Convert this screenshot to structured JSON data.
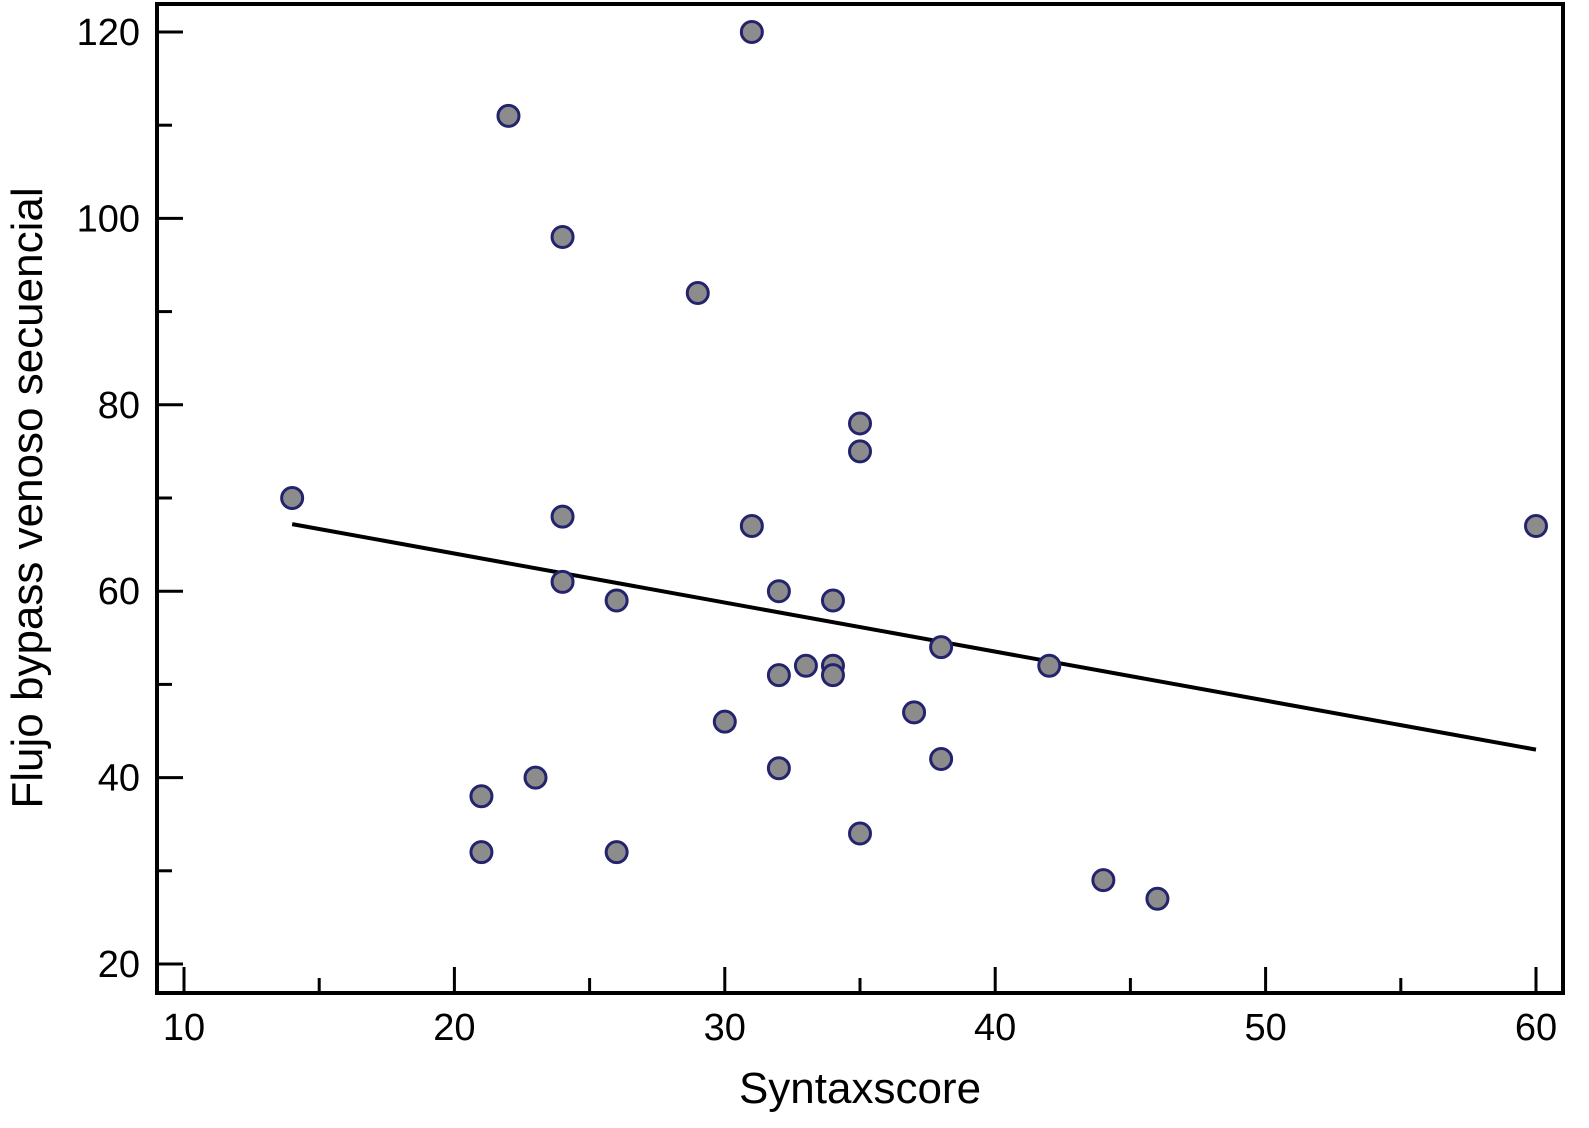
{
  "chart_data": {
    "type": "scatter",
    "title": "",
    "xlabel": "Syntaxscore",
    "ylabel": "Flujo bypass venoso secuencial",
    "xlim": [
      9,
      61
    ],
    "ylim": [
      17,
      123
    ],
    "x_ticks": [
      10,
      20,
      30,
      40,
      50,
      60
    ],
    "y_ticks": [
      20,
      40,
      60,
      80,
      100,
      120
    ],
    "x_minor_ticks": [
      15,
      25,
      35,
      45,
      55
    ],
    "y_minor_ticks": [
      30,
      50,
      70,
      90,
      110
    ],
    "grid": false,
    "points": [
      {
        "x": 14,
        "y": 70
      },
      {
        "x": 21,
        "y": 38
      },
      {
        "x": 21,
        "y": 32
      },
      {
        "x": 22,
        "y": 111
      },
      {
        "x": 23,
        "y": 40
      },
      {
        "x": 24,
        "y": 98
      },
      {
        "x": 24,
        "y": 68
      },
      {
        "x": 24,
        "y": 61
      },
      {
        "x": 26,
        "y": 59
      },
      {
        "x": 26,
        "y": 32
      },
      {
        "x": 29,
        "y": 92
      },
      {
        "x": 30,
        "y": 46
      },
      {
        "x": 31,
        "y": 120
      },
      {
        "x": 31,
        "y": 67
      },
      {
        "x": 32,
        "y": 60
      },
      {
        "x": 32,
        "y": 51
      },
      {
        "x": 32,
        "y": 41
      },
      {
        "x": 33,
        "y": 52
      },
      {
        "x": 34,
        "y": 59
      },
      {
        "x": 34,
        "y": 52
      },
      {
        "x": 34,
        "y": 51
      },
      {
        "x": 35,
        "y": 78
      },
      {
        "x": 35,
        "y": 75
      },
      {
        "x": 35,
        "y": 34
      },
      {
        "x": 37,
        "y": 47
      },
      {
        "x": 38,
        "y": 54
      },
      {
        "x": 38,
        "y": 42
      },
      {
        "x": 42,
        "y": 52
      },
      {
        "x": 44,
        "y": 29
      },
      {
        "x": 46,
        "y": 27
      },
      {
        "x": 60,
        "y": 67
      }
    ],
    "regression_line": {
      "x": [
        14,
        60
      ],
      "y": [
        67.2,
        43.0
      ]
    },
    "marker_fill": "#8c8c8c",
    "marker_stroke": "#23236e",
    "line_color": "#000000"
  }
}
